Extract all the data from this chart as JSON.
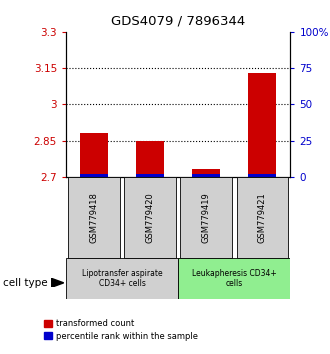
{
  "title": "GDS4079 / 7896344",
  "samples": [
    "GSM779418",
    "GSM779420",
    "GSM779419",
    "GSM779421"
  ],
  "red_values": [
    2.882,
    2.85,
    2.735,
    3.128
  ],
  "blue_pct": [
    2.0,
    2.0,
    2.0,
    2.0
  ],
  "ylim_left": [
    2.7,
    3.3
  ],
  "ylim_right": [
    0,
    100
  ],
  "yticks_left": [
    2.7,
    2.85,
    3.0,
    3.15,
    3.3
  ],
  "ytick_labels_left": [
    "2.7",
    "2.85",
    "3",
    "3.15",
    "3.3"
  ],
  "yticks_right": [
    0,
    25,
    50,
    75,
    100
  ],
  "ytick_labels_right": [
    "0",
    "25",
    "50",
    "75",
    "100%"
  ],
  "gridlines": [
    2.85,
    3.0,
    3.15
  ],
  "bar_width": 0.5,
  "red_color": "#cc0000",
  "blue_color": "#0000cc",
  "group1_label": "Lipotransfer aspirate\nCD34+ cells",
  "group2_label": "Leukapheresis CD34+\ncells",
  "group1_color": "#d0d0d0",
  "group2_color": "#90ee90",
  "cell_type_label": "cell type",
  "legend_red": "transformed count",
  "legend_blue": "percentile rank within the sample"
}
